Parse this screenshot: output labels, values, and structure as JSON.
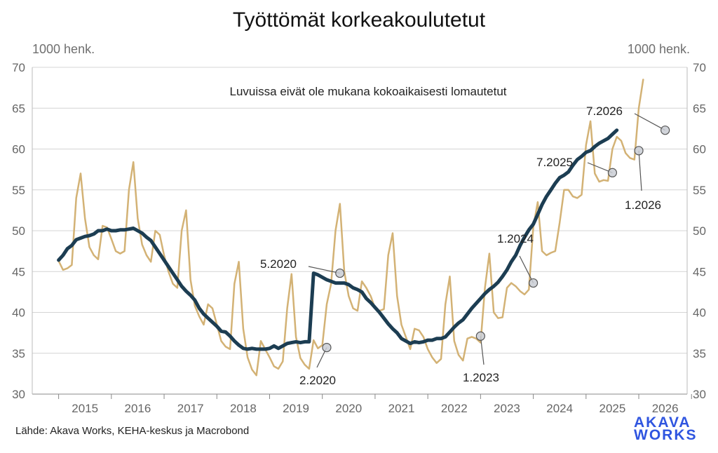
{
  "title": "Työttömät korkeakoulutetut",
  "unit_left": "1000 henk.",
  "unit_right": "1000 henk.",
  "source": "Lähde: Akava Works, KEHA-keskus ja Macrobond",
  "logo": {
    "line1": "AKAVA",
    "line2": "WORKS",
    "color": "#2f55e0"
  },
  "chart_data": {
    "type": "line",
    "title": "Työttömät korkeakoulutetut",
    "note": "Luvuissa eivät ole mukana kokoaikaisesti lomautetut",
    "ylim": [
      30,
      70
    ],
    "yticks": [
      30,
      35,
      40,
      45,
      50,
      55,
      60,
      65,
      70
    ],
    "xlim": [
      2014.5,
      2026.917
    ],
    "xticks": [
      "2015",
      "2016",
      "2017",
      "2018",
      "2019",
      "2020",
      "2021",
      "2022",
      "2023",
      "2024",
      "2025",
      "2026"
    ],
    "grid": "horizontal",
    "series": [
      {
        "color": "#d3b275",
        "style": "monthly",
        "start": "1.2015",
        "values": [
          46.3,
          45.2,
          45.4,
          45.8,
          54.0,
          57.0,
          51.5,
          48.0,
          47.0,
          46.5,
          50.6,
          50.4,
          49.0,
          47.5,
          47.2,
          47.5,
          55.0,
          58.4,
          51.5,
          48.3,
          47.0,
          46.2,
          50.0,
          49.5,
          47.0,
          45.0,
          43.5,
          43.0,
          50.0,
          52.5,
          44.0,
          40.8,
          39.5,
          38.5,
          41.0,
          40.5,
          38.5,
          36.5,
          35.8,
          35.5,
          43.5,
          46.2,
          38.0,
          34.5,
          33.0,
          32.3,
          36.5,
          35.5,
          34.5,
          33.4,
          33.1,
          34.0,
          40.5,
          44.7,
          37.0,
          34.4,
          33.6,
          33.1,
          36.6,
          35.6,
          36.0,
          41.0,
          43.5,
          50.0,
          53.3,
          45.0,
          42.0,
          40.5,
          40.2,
          43.8,
          43.0,
          42.0,
          40.5,
          40.2,
          40.4,
          47.0,
          49.7,
          42.0,
          38.5,
          37.0,
          35.5,
          38.0,
          37.8,
          37.0,
          35.5,
          34.5,
          33.8,
          34.3,
          41.0,
          44.4,
          36.5,
          34.8,
          34.1,
          36.8,
          37.0,
          36.8,
          36.3,
          43.0,
          47.2,
          40.0,
          39.3,
          39.4,
          43.0,
          43.6,
          43.2,
          42.6,
          42.2,
          42.8,
          50.5,
          53.5,
          47.5,
          47.0,
          47.3,
          47.5,
          51.0,
          55.0,
          55.0,
          54.2,
          54.0,
          54.4,
          60.5,
          63.4,
          57.0,
          56.0,
          56.2,
          56.1,
          60.0,
          61.5,
          61.0,
          59.5,
          58.9,
          58.7,
          65.0,
          68.5
        ]
      },
      {
        "color": "#1c3d52",
        "style": "trend",
        "start": "1.2015",
        "values": [
          46.4,
          47.0,
          47.8,
          48.2,
          48.9,
          49.1,
          49.3,
          49.4,
          49.6,
          50.0,
          50.0,
          50.2,
          50.0,
          50.0,
          50.1,
          50.1,
          50.2,
          50.3,
          50.0,
          49.7,
          49.2,
          48.8,
          48.0,
          47.2,
          46.4,
          45.6,
          44.8,
          44.0,
          43.2,
          42.6,
          42.1,
          41.5,
          40.5,
          39.8,
          39.3,
          38.8,
          38.3,
          37.7,
          37.6,
          37.1,
          36.5,
          36.0,
          35.6,
          35.5,
          35.6,
          35.5,
          35.5,
          35.5,
          35.6,
          35.9,
          35.6,
          35.9,
          36.2,
          36.3,
          36.4,
          36.3,
          36.4,
          36.4,
          44.8,
          44.6,
          44.3,
          44.0,
          43.8,
          43.6,
          43.6,
          43.6,
          43.4,
          43.0,
          42.8,
          42.5,
          41.7,
          41.2,
          40.6,
          40.0,
          39.3,
          38.6,
          38.0,
          37.5,
          36.8,
          36.5,
          36.2,
          36.4,
          36.3,
          36.4,
          36.6,
          36.6,
          36.8,
          36.8,
          37.0,
          37.6,
          38.2,
          38.7,
          39.1,
          39.8,
          40.5,
          41.1,
          41.7,
          42.3,
          42.8,
          43.2,
          43.7,
          44.4,
          45.2,
          46.2,
          47.0,
          48.2,
          49.2,
          50.1,
          50.8,
          52.0,
          53.2,
          54.2,
          55.0,
          55.8,
          56.5,
          56.8,
          57.2,
          58.0,
          58.7,
          59.1,
          59.6,
          59.8,
          60.3,
          60.7,
          61.0,
          61.3,
          61.8,
          62.3
        ]
      }
    ],
    "annotations": [
      {
        "label": "5.2020",
        "x": 2020.333,
        "y": 44.8
      },
      {
        "label": "2.2020",
        "x": 2020.083,
        "y": 35.7
      },
      {
        "label": "1.2023",
        "x": 2023.0,
        "y": 37.1
      },
      {
        "label": "1.2024",
        "x": 2024.0,
        "y": 43.6
      },
      {
        "label": "7.2025",
        "x": 2025.5,
        "y": 57.1
      },
      {
        "label": "1.2026",
        "x": 2026.0,
        "y": 59.8
      },
      {
        "label": "7.2026",
        "x": 2026.5,
        "y": 62.3
      }
    ]
  }
}
